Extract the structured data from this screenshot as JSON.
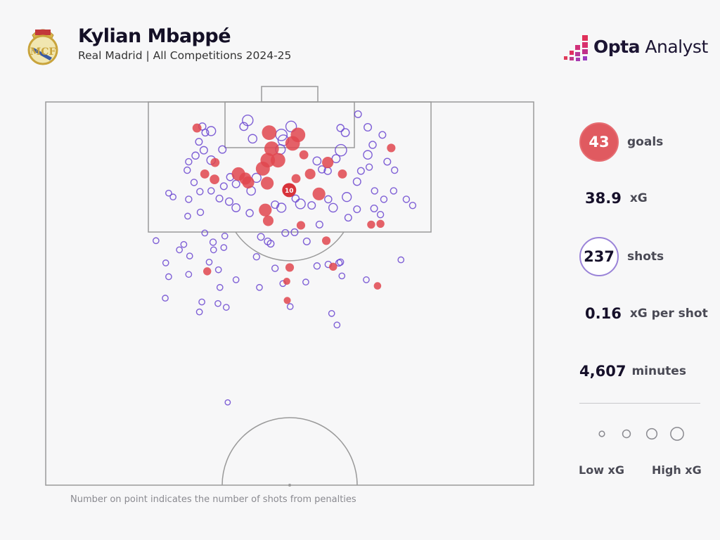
{
  "header": {
    "title": "Kylian Mbappé",
    "subtitle": "Real Madrid | All Competitions 2024-25",
    "club_crest": "Real Madrid crest",
    "brand": {
      "bold": "Opta",
      "regular": " Analyst"
    }
  },
  "stats": {
    "goals": {
      "value": "43",
      "label": "goals"
    },
    "xg": {
      "value": "38.9",
      "label": "xG"
    },
    "shots": {
      "value": "237",
      "label": "shots"
    },
    "xg_per_shot": {
      "value": "0.16",
      "label": "xG per shot"
    },
    "minutes": {
      "value": "4,607",
      "label": "minutes"
    }
  },
  "legend": {
    "low": "Low xG",
    "high": "High xG",
    "sizes": [
      0.03,
      0.12,
      0.3,
      0.55
    ]
  },
  "footnote": "Number on point indicates the number of shots from penalties",
  "colors": {
    "goal": "#e0474f",
    "miss": "#6a45d0",
    "pitch_line": "#9a9a9a",
    "background": "#f7f7f8"
  },
  "chart_data": {
    "type": "scatter",
    "description_units": "Opta pitch coordinates: x 0-100 along pitch length (100 = goal line), y 0-100 across width",
    "xlim": [
      50,
      100
    ],
    "ylim": [
      0,
      100
    ],
    "penalty": {
      "x": 88.5,
      "y": 49.9,
      "xg": 0.79,
      "label": "10"
    },
    "goals": [
      [
        96.6,
        31.0,
        0.12
      ],
      [
        96.0,
        45.8,
        0.5
      ],
      [
        95.7,
        51.7,
        0.5
      ],
      [
        94.6,
        50.6,
        0.5
      ],
      [
        93.9,
        46.3,
        0.5
      ],
      [
        92.4,
        47.6,
        0.5
      ],
      [
        92.4,
        45.5,
        0.5
      ],
      [
        91.3,
        44.5,
        0.45
      ],
      [
        90.6,
        39.5,
        0.4
      ],
      [
        90.0,
        40.9,
        0.3
      ],
      [
        89.5,
        41.5,
        0.3
      ],
      [
        89.4,
        45.4,
        0.35
      ],
      [
        93.1,
        52.9,
        0.12
      ],
      [
        92.1,
        57.8,
        0.25
      ],
      [
        90.6,
        54.2,
        0.2
      ],
      [
        90.0,
        51.3,
        0.12
      ],
      [
        90.6,
        60.8,
        0.12
      ],
      [
        88.0,
        56.0,
        0.35
      ],
      [
        92.1,
        34.7,
        0.12
      ],
      [
        90.6,
        32.6,
        0.12
      ],
      [
        89.9,
        34.6,
        0.15
      ],
      [
        85.9,
        45.0,
        0.35
      ],
      [
        84.5,
        45.6,
        0.2
      ],
      [
        83.9,
        52.3,
        0.1
      ],
      [
        81.9,
        57.5,
        0.1
      ],
      [
        94.0,
        70.8,
        0.1
      ],
      [
        84.0,
        66.7,
        0.08
      ],
      [
        84.1,
        68.6,
        0.08
      ],
      [
        78.4,
        50.0,
        0.1
      ],
      [
        78.5,
        58.9,
        0.08
      ],
      [
        77.9,
        33.1,
        0.08
      ],
      [
        76.6,
        49.4,
        0.05
      ],
      [
        76.0,
        68.0,
        0.06
      ],
      [
        74.1,
        49.5,
        0.05
      ]
    ],
    "misses": [
      [
        96.8,
        32.1,
        0.05
      ],
      [
        96.0,
        32.7,
        0.04
      ],
      [
        96.2,
        33.9,
        0.12
      ],
      [
        94.8,
        31.4,
        0.04
      ],
      [
        93.7,
        32.4,
        0.06
      ],
      [
        93.0,
        30.7,
        0.05
      ],
      [
        91.1,
        29.0,
        0.03
      ],
      [
        92.2,
        29.3,
        0.03
      ],
      [
        92.4,
        33.9,
        0.1
      ],
      [
        93.8,
        36.2,
        0.06
      ],
      [
        97.6,
        41.4,
        0.2
      ],
      [
        96.8,
        40.6,
        0.08
      ],
      [
        95.2,
        42.4,
        0.1
      ],
      [
        96.8,
        50.3,
        0.2
      ],
      [
        95.7,
        48.3,
        0.25
      ],
      [
        95.0,
        48.7,
        0.2
      ],
      [
        93.8,
        48.1,
        0.15
      ],
      [
        96.6,
        60.4,
        0.05
      ],
      [
        96.0,
        61.4,
        0.08
      ],
      [
        98.4,
        64.0,
        0.04
      ],
      [
        96.7,
        66.0,
        0.06
      ],
      [
        95.7,
        69.0,
        0.04
      ],
      [
        94.4,
        67.0,
        0.05
      ],
      [
        93.1,
        66.0,
        0.1
      ],
      [
        92.2,
        70.0,
        0.04
      ],
      [
        91.1,
        71.5,
        0.03
      ],
      [
        93.7,
        60.5,
        0.25
      ],
      [
        92.6,
        59.5,
        0.08
      ],
      [
        92.3,
        55.6,
        0.08
      ],
      [
        91.2,
        56.6,
        0.05
      ],
      [
        91.0,
        57.8,
        0.05
      ],
      [
        91.0,
        64.6,
        0.04
      ],
      [
        91.5,
        66.3,
        0.03
      ],
      [
        89.6,
        63.8,
        0.06
      ],
      [
        88.4,
        67.4,
        0.03
      ],
      [
        87.3,
        69.3,
        0.03
      ],
      [
        88.4,
        71.3,
        0.03
      ],
      [
        87.3,
        73.9,
        0.03
      ],
      [
        86.5,
        75.2,
        0.03
      ],
      [
        85.3,
        68.6,
        0.03
      ],
      [
        86.1,
        67.3,
        0.04
      ],
      [
        86.0,
        63.8,
        0.04
      ],
      [
        87.6,
        61.7,
        0.12
      ],
      [
        86.2,
        58.9,
        0.1
      ],
      [
        87.3,
        57.9,
        0.05
      ],
      [
        84.9,
        62.0,
        0.04
      ],
      [
        84.0,
        56.1,
        0.04
      ],
      [
        81.8,
        53.5,
        0.04
      ],
      [
        79.1,
        60.4,
        0.03
      ],
      [
        79.0,
        60.1,
        0.03
      ],
      [
        78.6,
        55.6,
        0.03
      ],
      [
        78.8,
        57.9,
        0.03
      ],
      [
        77.3,
        60.7,
        0.02
      ],
      [
        76.8,
        65.7,
        0.02
      ],
      [
        79.4,
        72.8,
        0.02
      ],
      [
        72.4,
        58.6,
        0.02
      ],
      [
        70.9,
        59.7,
        0.02
      ],
      [
        76.5,
        53.3,
        0.02
      ],
      [
        73.3,
        50.1,
        0.02
      ],
      [
        76.3,
        48.6,
        0.02
      ],
      [
        79.8,
        43.2,
        0.03
      ],
      [
        78.3,
        47.0,
        0.03
      ],
      [
        81.5,
        46.1,
        0.04
      ],
      [
        82.9,
        49.1,
        0.04
      ],
      [
        83.0,
        51.0,
        0.04
      ],
      [
        86.2,
        48.3,
        0.12
      ],
      [
        86.6,
        47.0,
        0.06
      ],
      [
        85.5,
        41.8,
        0.05
      ],
      [
        86.2,
        39.0,
        0.08
      ],
      [
        87.0,
        37.6,
        0.06
      ],
      [
        87.4,
        35.6,
        0.04
      ],
      [
        89.0,
        36.5,
        0.04
      ],
      [
        90.2,
        37.8,
        0.05
      ],
      [
        89.3,
        39.0,
        0.06
      ],
      [
        88.4,
        42.1,
        0.1
      ],
      [
        90.1,
        43.2,
        0.12
      ],
      [
        88.4,
        33.9,
        0.03
      ],
      [
        88.3,
        31.6,
        0.03
      ],
      [
        89.5,
        30.4,
        0.03
      ],
      [
        87.3,
        29.3,
        0.03
      ],
      [
        85.6,
        31.7,
        0.03
      ],
      [
        85.1,
        29.1,
        0.02
      ],
      [
        88.1,
        25.2,
        0.02
      ],
      [
        87.6,
        26.1,
        0.02
      ],
      [
        81.9,
        22.6,
        0.02
      ],
      [
        79.0,
        24.6,
        0.02
      ],
      [
        80.7,
        27.4,
        0.02
      ],
      [
        81.4,
        28.3,
        0.02
      ],
      [
        79.9,
        29.5,
        0.02
      ],
      [
        82.9,
        32.6,
        0.02
      ],
      [
        81.7,
        34.3,
        0.03
      ],
      [
        80.7,
        34.4,
        0.02
      ],
      [
        81.0,
        36.5,
        0.02
      ],
      [
        82.5,
        36.7,
        0.02
      ],
      [
        79.1,
        33.5,
        0.02
      ],
      [
        78.1,
        35.4,
        0.02
      ],
      [
        77.5,
        29.3,
        0.02
      ],
      [
        77.2,
        25.2,
        0.02
      ],
      [
        75.8,
        35.7,
        0.02
      ],
      [
        76.8,
        39.0,
        0.02
      ],
      [
        75.8,
        43.8,
        0.02
      ],
      [
        73.9,
        32.0,
        0.02
      ],
      [
        74.4,
        24.5,
        0.02
      ],
      [
        73.7,
        35.3,
        0.02
      ],
      [
        73.2,
        37.0,
        0.02
      ],
      [
        72.6,
        31.5,
        0.02
      ],
      [
        60.8,
        37.3,
        0.01
      ],
      [
        82.4,
        44.1,
        0.04
      ],
      [
        81.8,
        45.5,
        0.04
      ],
      [
        86.7,
        52.2,
        0.15
      ],
      [
        86.5,
        54.5,
        0.06
      ],
      [
        87.4,
        51.2,
        0.05
      ]
    ]
  }
}
